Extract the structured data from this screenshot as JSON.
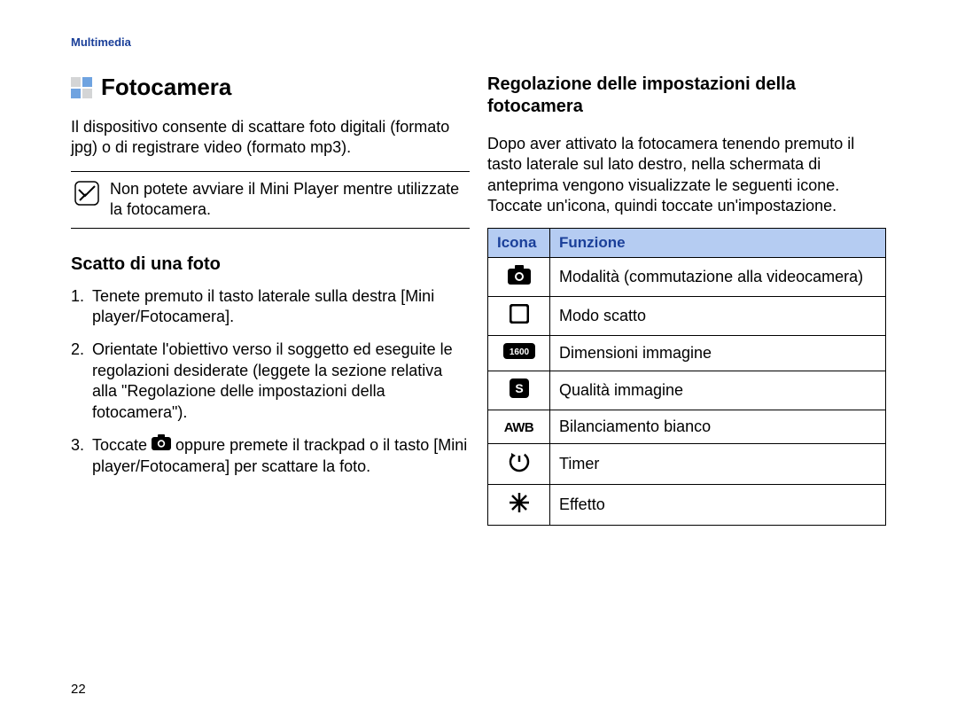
{
  "header": "Multimedia",
  "pageNumber": "22",
  "left": {
    "title": "Fotocamera",
    "titleIconColors": {
      "tl": "#d4d5d6",
      "tr": "#6fa3e0",
      "bl": "#6fa3e0",
      "br": "#d4d5d6"
    },
    "intro": "Il dispositivo consente di scattare foto digitali (formato jpg) o di registrare video (formato mp3).",
    "note": "Non potete avviare il Mini Player mentre utilizzate la fotocamera.",
    "subheading": "Scatto di una foto",
    "steps": {
      "s1": "Tenete premuto il tasto laterale sulla destra [Mini player/Fotocamera].",
      "s2": "Orientate l'obiettivo verso il soggetto ed eseguite le regolazioni desiderate (leggete la sezione relativa alla \"Regolazione delle impostazioni della fotocamera\").",
      "s3a": "Toccate ",
      "s3b": " oppure premete il trackpad o il tasto [Mini player/Fotocamera] per scattare la foto."
    }
  },
  "right": {
    "heading": "Regolazione delle impostazioni della fotocamera",
    "intro": "Dopo aver attivato la fotocamera tenendo premuto il tasto laterale sul lato destro, nella schermata di anteprima vengono visualizzate le seguenti icone. Toccate un'icona, quindi toccate un'impostazione.",
    "table": {
      "headIcona": "Icona",
      "headFunzione": "Funzione",
      "rows": [
        {
          "icon": "camera",
          "label": "Modalità (commutazione alla videocamera)"
        },
        {
          "icon": "square",
          "label": "Modo scatto"
        },
        {
          "icon": "res",
          "label": "Dimensioni immagine"
        },
        {
          "icon": "s",
          "label": "Qualità immagine"
        },
        {
          "icon": "awb",
          "label": "Bilanciamento bianco"
        },
        {
          "icon": "timer",
          "label": "Timer"
        },
        {
          "icon": "star",
          "label": "Effetto"
        }
      ]
    }
  },
  "colors": {
    "headerBlue": "#1a3f99",
    "tableHeaderBg": "#b5ccf2"
  }
}
